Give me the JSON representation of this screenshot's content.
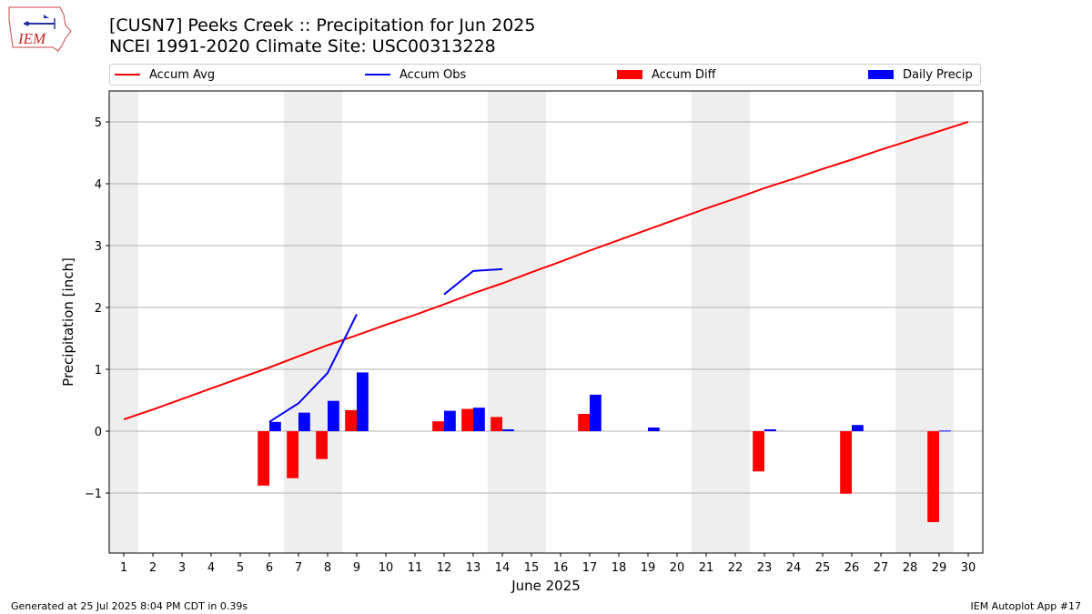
{
  "header": {
    "title_line1": "[CUSN7] Peeks Creek :: Precipitation for Jun 2025",
    "title_line2": "NCEI 1991-2020 Climate Site: USC00313228",
    "logo_text": "IEM"
  },
  "footer": {
    "left": "Generated at 25 Jul 2025 8:04 PM CDT in 0.39s",
    "right": "IEM Autoplot App #17"
  },
  "colors": {
    "accum_avg": "#ff0000",
    "accum_obs": "#0000ff",
    "accum_diff": "#ff0000",
    "daily_precip": "#0000ff",
    "weekend_band": "#eeeeee",
    "grid": "#b0b0b0"
  },
  "chart_data": {
    "type": "bar",
    "xlabel": "June 2025",
    "ylabel": "Precipitation [inch]",
    "xlim": [
      0.5,
      30.5
    ],
    "ylim": [
      -1.97,
      5.5
    ],
    "yticks": [
      -1,
      0,
      1,
      2,
      3,
      4,
      5
    ],
    "ytick_labels": [
      "−1",
      "0",
      "1",
      "2",
      "3",
      "4",
      "5"
    ],
    "x": [
      1,
      2,
      3,
      4,
      5,
      6,
      7,
      8,
      9,
      10,
      11,
      12,
      13,
      14,
      15,
      16,
      17,
      18,
      19,
      20,
      21,
      22,
      23,
      24,
      25,
      26,
      27,
      28,
      29,
      30
    ],
    "grid": "horizontal",
    "legend_position": "top",
    "weekend_days": [
      1,
      7,
      8,
      14,
      15,
      21,
      22,
      28,
      29
    ],
    "series": [
      {
        "name": "Accum Avg",
        "type": "line",
        "values": [
          0.19,
          0.35,
          0.52,
          0.69,
          0.86,
          1.03,
          1.21,
          1.39,
          1.55,
          1.72,
          1.88,
          2.05,
          2.23,
          2.39,
          2.57,
          2.74,
          2.92,
          3.09,
          3.26,
          3.43,
          3.6,
          3.76,
          3.93,
          4.08,
          4.24,
          4.39,
          4.55,
          4.7,
          4.85,
          5.0
        ]
      },
      {
        "name": "Accum Obs",
        "type": "line",
        "values": [
          null,
          null,
          null,
          null,
          null,
          0.15,
          0.45,
          0.94,
          1.89,
          null,
          null,
          2.21,
          2.59,
          2.62,
          null,
          null,
          null,
          null,
          null,
          null,
          null,
          null,
          null,
          null,
          null,
          null,
          null,
          null,
          null,
          null
        ]
      },
      {
        "name": "Accum Diff",
        "type": "bar",
        "values": [
          null,
          null,
          null,
          null,
          null,
          -0.88,
          -0.76,
          -0.45,
          0.34,
          null,
          null,
          0.16,
          0.36,
          0.23,
          null,
          null,
          0.28,
          null,
          null,
          null,
          null,
          null,
          -0.65,
          null,
          null,
          -1.01,
          null,
          null,
          -1.47,
          null
        ]
      },
      {
        "name": "Daily Precip",
        "type": "bar",
        "values": [
          null,
          null,
          null,
          null,
          null,
          0.15,
          0.3,
          0.49,
          0.95,
          null,
          null,
          0.33,
          0.38,
          0.03,
          null,
          null,
          0.59,
          null,
          0.06,
          null,
          null,
          null,
          0.03,
          null,
          null,
          0.1,
          null,
          null,
          0.01,
          null
        ]
      }
    ]
  }
}
